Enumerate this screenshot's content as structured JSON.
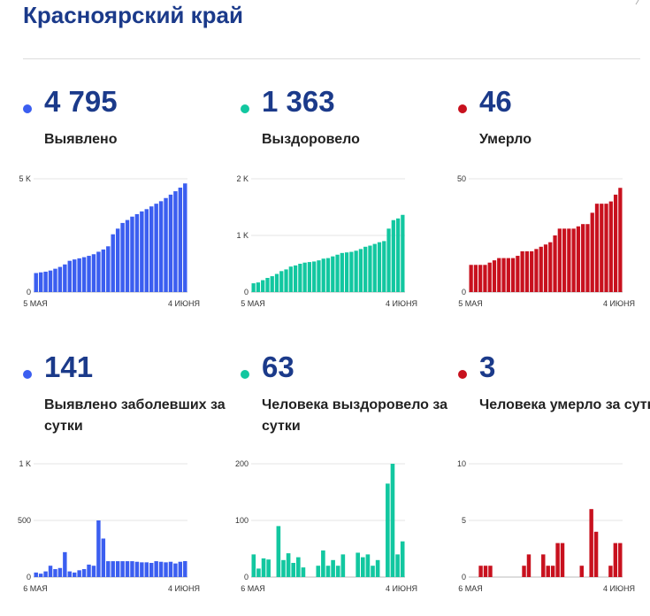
{
  "title": "Красноярский край",
  "panels": [
    {
      "value": "4 795",
      "caption": "Выявлено",
      "color": "#3b5ef0",
      "chart_index": 0
    },
    {
      "value": "1 363",
      "caption": "Выздоровело",
      "color": "#12c7a0",
      "chart_index": 1
    },
    {
      "value": "46",
      "caption": "Умерло",
      "color": "#c8111e",
      "chart_index": 2
    },
    {
      "value": "141",
      "caption": "Выявлено заболевших за сутки",
      "color": "#3b5ef0",
      "chart_index": 3
    },
    {
      "value": "63",
      "caption": "Человека выздоровело за сутки",
      "color": "#12c7a0",
      "chart_index": 4
    },
    {
      "value": "3",
      "caption": "Человека умерло за сутки",
      "color": "#c8111e",
      "chart_index": 5
    }
  ],
  "chart_data": [
    {
      "type": "bar",
      "ytick_labels": [
        "0",
        "5 K"
      ],
      "yticks": [
        0,
        5000
      ],
      "ylim": [
        0,
        5000
      ],
      "xlabels": [
        "5 МАЯ",
        "4 ИЮНЯ"
      ],
      "color": "#3b5ef0",
      "values": [
        840,
        870,
        900,
        950,
        1030,
        1110,
        1220,
        1380,
        1440,
        1490,
        1540,
        1600,
        1670,
        1780,
        1880,
        2020,
        2550,
        2800,
        3050,
        3180,
        3330,
        3440,
        3560,
        3660,
        3780,
        3900,
        4010,
        4150,
        4300,
        4450,
        4610,
        4795
      ]
    },
    {
      "type": "bar",
      "ytick_labels": [
        "0",
        "1 K",
        "2 K"
      ],
      "yticks": [
        0,
        1000,
        2000
      ],
      "ylim": [
        0,
        2000
      ],
      "xlabels": [
        "5 МАЯ",
        "4 ИЮНЯ"
      ],
      "color": "#12c7a0",
      "values": [
        155,
        170,
        210,
        250,
        280,
        320,
        370,
        400,
        450,
        470,
        500,
        520,
        530,
        540,
        560,
        590,
        600,
        630,
        660,
        690,
        700,
        710,
        730,
        760,
        800,
        820,
        850,
        880,
        900,
        1120,
        1270,
        1300,
        1363
      ]
    },
    {
      "type": "bar",
      "ytick_labels": [
        "0",
        "50"
      ],
      "yticks": [
        0,
        50
      ],
      "ylim": [
        0,
        50
      ],
      "xlabels": [
        "5 МАЯ",
        "4 ИЮНЯ"
      ],
      "color": "#c8111e",
      "values": [
        12,
        12,
        12,
        12,
        13,
        14,
        15,
        15,
        15,
        15,
        16,
        18,
        18,
        18,
        19,
        20,
        21,
        22,
        25,
        28,
        28,
        28,
        28,
        29,
        30,
        30,
        35,
        39,
        39,
        39,
        40,
        43,
        46
      ]
    },
    {
      "type": "bar",
      "ytick_labels": [
        "0",
        "500",
        "1 K"
      ],
      "yticks": [
        0,
        500,
        1000
      ],
      "ylim": [
        0,
        1000
      ],
      "xlabels": [
        "6 МАЯ",
        "4 ИЮНЯ"
      ],
      "color": "#3b5ef0",
      "values": [
        40,
        30,
        50,
        100,
        70,
        80,
        220,
        50,
        40,
        60,
        70,
        110,
        100,
        500,
        340,
        140,
        140,
        140,
        140,
        140,
        140,
        135,
        130,
        130,
        125,
        140,
        135,
        130,
        135,
        120,
        135,
        141
      ]
    },
    {
      "type": "bar",
      "ytick_labels": [
        "0",
        "100",
        "200"
      ],
      "yticks": [
        0,
        100,
        200
      ],
      "ylim": [
        0,
        200
      ],
      "xlabels": [
        "6 МАЯ",
        "4 ИЮНЯ"
      ],
      "color": "#12c7a0",
      "values": [
        40,
        15,
        33,
        31,
        0,
        90,
        30,
        42,
        25,
        35,
        17,
        0,
        0,
        20,
        47,
        20,
        30,
        20,
        40,
        0,
        0,
        43,
        35,
        40,
        20,
        30,
        0,
        165,
        200,
        40,
        63
      ]
    },
    {
      "type": "bar",
      "ytick_labels": [
        "0",
        "5",
        "10"
      ],
      "yticks": [
        0,
        5,
        10
      ],
      "ylim": [
        0,
        10
      ],
      "xlabels": [
        "6 МАЯ",
        "4 ИЮНЯ"
      ],
      "color": "#c8111e",
      "values": [
        0,
        0,
        1,
        1,
        1,
        0,
        0,
        0,
        0,
        0,
        0,
        1,
        2,
        0,
        0,
        2,
        1,
        1,
        3,
        3,
        0,
        0,
        0,
        1,
        0,
        6,
        4,
        0,
        0,
        1,
        3,
        3
      ]
    }
  ]
}
